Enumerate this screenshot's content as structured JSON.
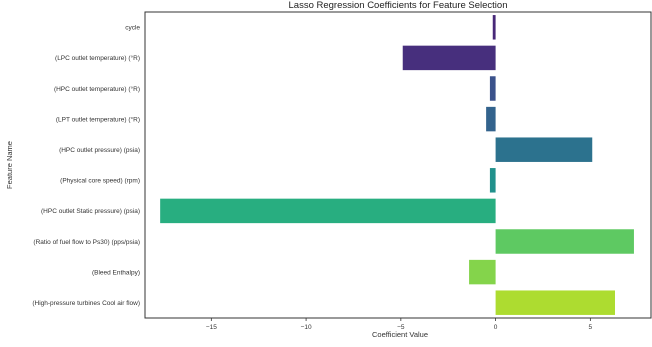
{
  "chart_data": {
    "type": "bar",
    "orientation": "horizontal",
    "title": "Lasso Regression Coefficients for Feature Selection",
    "xlabel": "Coefficient Value",
    "ylabel": "Feature Name",
    "xlim": [
      -18.5,
      8.2
    ],
    "xticks": [
      -15,
      -10,
      -5,
      0,
      5
    ],
    "xtick_labels": [
      "−15",
      "−10",
      "−5",
      "0",
      "5"
    ],
    "grid": false,
    "categories": [
      "cycle",
      "(LPC outlet temperature) (°R)",
      "(HPC outlet temperature) (°R)",
      "(LPT outlet temperature) (°R)",
      "(HPC outlet pressure) (psia)",
      "(Physical core speed) (rpm)",
      "(HPC outlet Static pressure) (psia)",
      "(Ratio of fuel flow to Ps30) (pps/psia)",
      "(Bleed Enthalpy)",
      "(High-pressure turbines Cool air flow)"
    ],
    "values": [
      -0.15,
      -4.9,
      -0.3,
      -0.5,
      5.1,
      -0.3,
      -17.7,
      7.3,
      -1.4,
      6.3
    ],
    "colors": [
      "#482878",
      "#472f7d",
      "#3b528b",
      "#33638d",
      "#2c728e",
      "#21918c",
      "#28ae80",
      "#5ec962",
      "#84d44b",
      "#addc30"
    ]
  }
}
